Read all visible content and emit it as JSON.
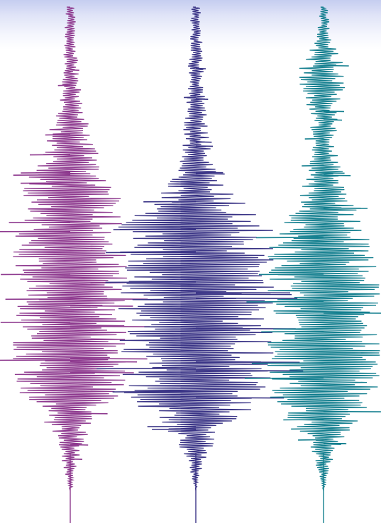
{
  "image": {
    "description_kind": "decorative-waveforms",
    "background_color": "#ffffff",
    "top_fade_color": "#c5cdf0",
    "waves": [
      {
        "name": "magenta-waveform",
        "color": "#8e3a8f"
      },
      {
        "name": "indigo-waveform",
        "color": "#3a3486"
      },
      {
        "name": "teal-waveform",
        "color": "#147f8f"
      }
    ]
  }
}
